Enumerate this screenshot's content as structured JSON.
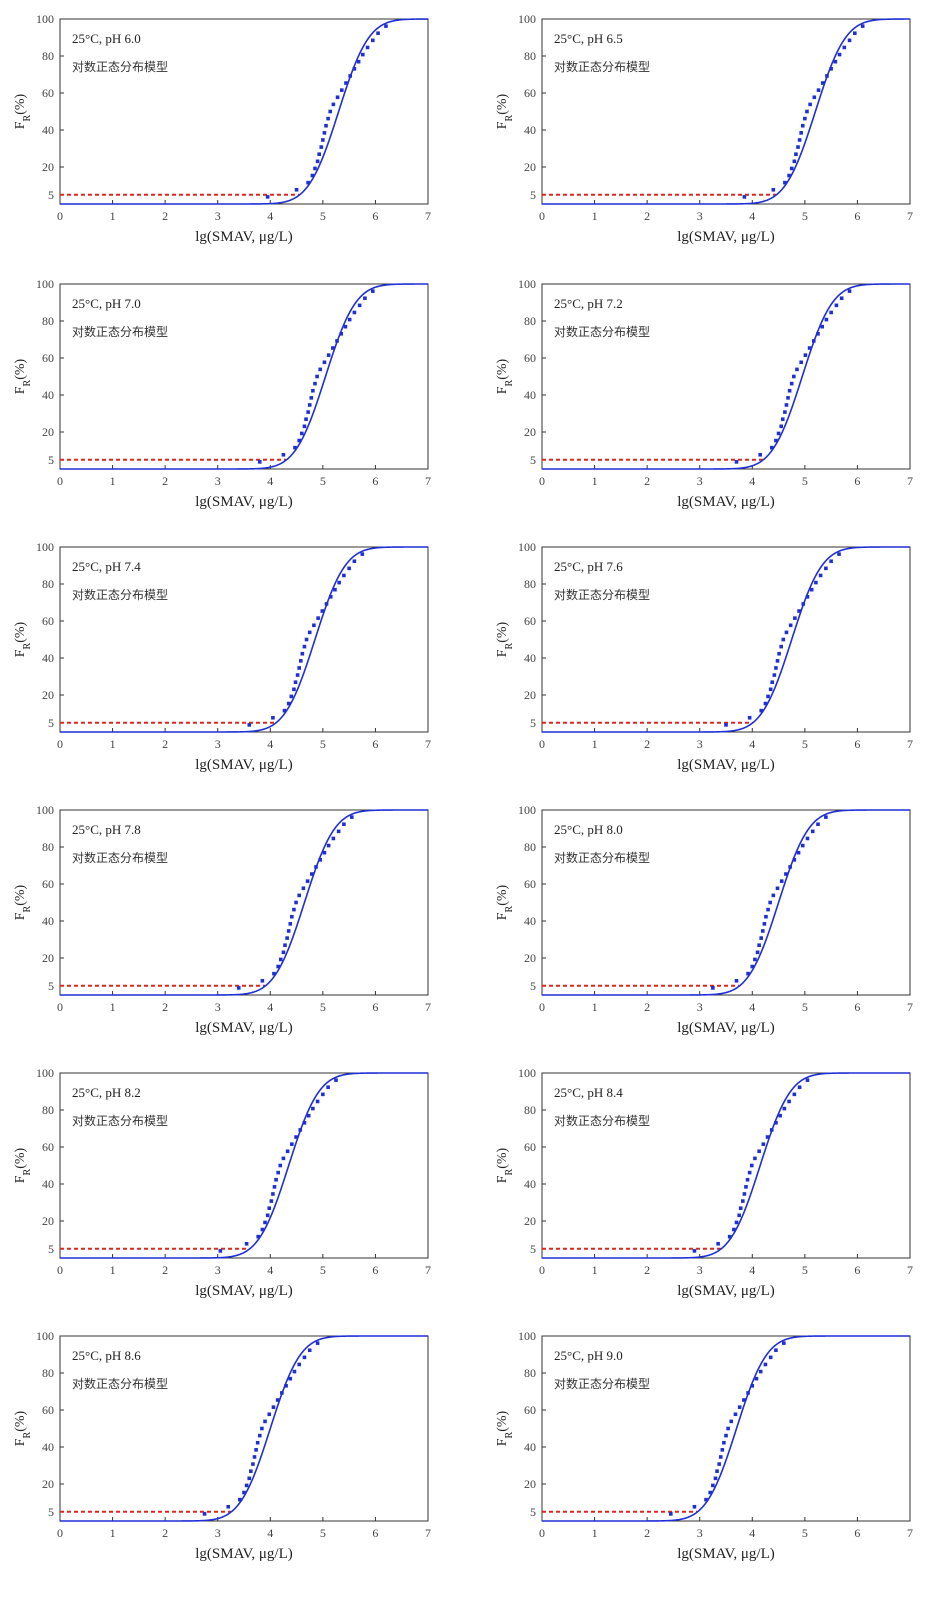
{
  "chart_data": [
    {
      "type": "line",
      "panel": "pH 6.0",
      "annotation": "25°C, pH 6.0",
      "model_label": "对数正态分布模型",
      "xlabel": "lg(SMAV,  μg/L)",
      "ylabel": "F_R(%)",
      "xlim": [
        0,
        7
      ],
      "ylim": [
        0,
        100
      ],
      "xticks": [
        0,
        1,
        2,
        3,
        4,
        5,
        6,
        7
      ],
      "yticks": [
        5,
        20,
        40,
        60,
        80,
        100
      ],
      "threshold_percent": 5,
      "hc5_lg": 4.55,
      "fit": {
        "mu": 5.3,
        "sigma": 0.45
      },
      "points_x": [
        3.95,
        4.5,
        4.72,
        4.8,
        4.85,
        4.9,
        4.93,
        4.97,
        5.0,
        5.03,
        5.06,
        5.1,
        5.14,
        5.2,
        5.28,
        5.36,
        5.44,
        5.52,
        5.6,
        5.68,
        5.76,
        5.85,
        5.95,
        6.05,
        6.2
      ]
    },
    {
      "type": "line",
      "panel": "pH 6.5",
      "annotation": "25°C, pH 6.5",
      "model_label": "对数正态分布模型",
      "xlabel": "lg(SMAV,  μg/L)",
      "ylabel": "F_R(%)",
      "xlim": [
        0,
        7
      ],
      "ylim": [
        0,
        100
      ],
      "xticks": [
        0,
        1,
        2,
        3,
        4,
        5,
        6,
        7
      ],
      "yticks": [
        5,
        20,
        40,
        60,
        80,
        100
      ],
      "threshold_percent": 5,
      "hc5_lg": 4.45,
      "fit": {
        "mu": 5.2,
        "sigma": 0.45
      },
      "points_x": [
        3.85,
        4.4,
        4.62,
        4.7,
        4.75,
        4.8,
        4.83,
        4.87,
        4.9,
        4.93,
        4.96,
        5.0,
        5.04,
        5.1,
        5.18,
        5.26,
        5.34,
        5.42,
        5.5,
        5.58,
        5.66,
        5.75,
        5.85,
        5.95,
        6.1
      ]
    },
    {
      "type": "line",
      "panel": "pH 7.0",
      "annotation": "25°C, pH 7.0",
      "model_label": "对数正态分布模型",
      "xlabel": "lg(SMAV,  μg/L)",
      "ylabel": "F_R(%)",
      "xlim": [
        0,
        7
      ],
      "ylim": [
        0,
        100
      ],
      "xticks": [
        0,
        1,
        2,
        3,
        4,
        5,
        6,
        7
      ],
      "yticks": [
        5,
        20,
        40,
        60,
        80,
        100
      ],
      "threshold_percent": 5,
      "hc5_lg": 4.3,
      "fit": {
        "mu": 5.05,
        "sigma": 0.45
      },
      "points_x": [
        3.8,
        4.25,
        4.47,
        4.55,
        4.6,
        4.65,
        4.68,
        4.72,
        4.75,
        4.78,
        4.81,
        4.85,
        4.89,
        4.95,
        5.03,
        5.11,
        5.19,
        5.27,
        5.35,
        5.43,
        5.51,
        5.6,
        5.7,
        5.8,
        5.95
      ]
    },
    {
      "type": "line",
      "panel": "pH 7.2",
      "annotation": "25°C, pH 7.2",
      "model_label": "对数正态分布模型",
      "xlabel": "lg(SMAV,  μg/L)",
      "ylabel": "F_R(%)",
      "xlim": [
        0,
        7
      ],
      "ylim": [
        0,
        100
      ],
      "xticks": [
        0,
        1,
        2,
        3,
        4,
        5,
        6,
        7
      ],
      "yticks": [
        5,
        20,
        40,
        60,
        80,
        100
      ],
      "threshold_percent": 5,
      "hc5_lg": 4.2,
      "fit": {
        "mu": 4.95,
        "sigma": 0.45
      },
      "points_x": [
        3.7,
        4.15,
        4.37,
        4.45,
        4.5,
        4.55,
        4.58,
        4.62,
        4.65,
        4.68,
        4.71,
        4.75,
        4.79,
        4.85,
        4.93,
        5.01,
        5.09,
        5.17,
        5.25,
        5.33,
        5.41,
        5.5,
        5.6,
        5.7,
        5.85
      ]
    },
    {
      "type": "line",
      "panel": "pH 7.4",
      "annotation": "25°C, pH 7.4",
      "model_label": "对数正态分布模型",
      "xlabel": "lg(SMAV,  μg/L)",
      "ylabel": "F_R(%)",
      "xlim": [
        0,
        7
      ],
      "ylim": [
        0,
        100
      ],
      "xticks": [
        0,
        1,
        2,
        3,
        4,
        5,
        6,
        7
      ],
      "yticks": [
        5,
        20,
        40,
        60,
        80,
        100
      ],
      "threshold_percent": 5,
      "hc5_lg": 4.1,
      "fit": {
        "mu": 4.85,
        "sigma": 0.45
      },
      "points_x": [
        3.6,
        4.05,
        4.27,
        4.35,
        4.4,
        4.45,
        4.48,
        4.52,
        4.55,
        4.58,
        4.61,
        4.65,
        4.69,
        4.75,
        4.83,
        4.91,
        4.99,
        5.07,
        5.15,
        5.23,
        5.31,
        5.4,
        5.5,
        5.6,
        5.75
      ]
    },
    {
      "type": "line",
      "panel": "pH 7.6",
      "annotation": "25°C, pH 7.6",
      "model_label": "对数正态分布模型",
      "xlabel": "lg(SMAV,  μg/L)",
      "ylabel": "F_R(%)",
      "xlim": [
        0,
        7
      ],
      "ylim": [
        0,
        100
      ],
      "xticks": [
        0,
        1,
        2,
        3,
        4,
        5,
        6,
        7
      ],
      "yticks": [
        5,
        20,
        40,
        60,
        80,
        100
      ],
      "threshold_percent": 5,
      "hc5_lg": 4.0,
      "fit": {
        "mu": 4.75,
        "sigma": 0.45
      },
      "points_x": [
        3.5,
        3.95,
        4.17,
        4.25,
        4.3,
        4.35,
        4.38,
        4.42,
        4.45,
        4.48,
        4.51,
        4.55,
        4.59,
        4.65,
        4.73,
        4.81,
        4.89,
        4.97,
        5.05,
        5.13,
        5.21,
        5.3,
        5.4,
        5.5,
        5.65
      ]
    },
    {
      "type": "line",
      "panel": "pH 7.8",
      "annotation": "25°C, pH 7.8",
      "model_label": "对数正态分布模型",
      "xlabel": "lg(SMAV,  μg/L)",
      "ylabel": "F_R(%)",
      "xlim": [
        0,
        7
      ],
      "ylim": [
        0,
        100
      ],
      "xticks": [
        0,
        1,
        2,
        3,
        4,
        5,
        6,
        7
      ],
      "yticks": [
        5,
        20,
        40,
        60,
        80,
        100
      ],
      "threshold_percent": 5,
      "hc5_lg": 3.9,
      "fit": {
        "mu": 4.65,
        "sigma": 0.45
      },
      "points_x": [
        3.4,
        3.85,
        4.07,
        4.15,
        4.2,
        4.25,
        4.28,
        4.32,
        4.35,
        4.38,
        4.41,
        4.45,
        4.49,
        4.55,
        4.63,
        4.71,
        4.79,
        4.87,
        4.95,
        5.03,
        5.11,
        5.2,
        5.3,
        5.4,
        5.55
      ]
    },
    {
      "type": "line",
      "panel": "pH 8.0",
      "annotation": "25°C, pH 8.0",
      "model_label": "对数正态分布模型",
      "xlabel": "lg(SMAV,  μg/L)",
      "ylabel": "F_R(%)",
      "xlim": [
        0,
        7
      ],
      "ylim": [
        0,
        100
      ],
      "xticks": [
        0,
        1,
        2,
        3,
        4,
        5,
        6,
        7
      ],
      "yticks": [
        5,
        20,
        40,
        60,
        80,
        100
      ],
      "threshold_percent": 5,
      "hc5_lg": 3.75,
      "fit": {
        "mu": 4.5,
        "sigma": 0.45
      },
      "points_x": [
        3.25,
        3.7,
        3.92,
        4.0,
        4.05,
        4.1,
        4.13,
        4.17,
        4.2,
        4.23,
        4.26,
        4.3,
        4.34,
        4.4,
        4.48,
        4.56,
        4.64,
        4.72,
        4.8,
        4.88,
        4.96,
        5.05,
        5.15,
        5.25,
        5.4
      ]
    },
    {
      "type": "line",
      "panel": "pH 8.2",
      "annotation": "25°C, pH 8.2",
      "model_label": "对数正态分布模型",
      "xlabel": "lg(SMAV,  μg/L)",
      "ylabel": "F_R(%)",
      "xlim": [
        0,
        7
      ],
      "ylim": [
        0,
        100
      ],
      "xticks": [
        0,
        1,
        2,
        3,
        4,
        5,
        6,
        7
      ],
      "yticks": [
        5,
        20,
        40,
        60,
        80,
        100
      ],
      "threshold_percent": 5,
      "hc5_lg": 3.6,
      "fit": {
        "mu": 4.35,
        "sigma": 0.45
      },
      "points_x": [
        3.05,
        3.55,
        3.77,
        3.85,
        3.9,
        3.95,
        3.98,
        4.02,
        4.05,
        4.08,
        4.11,
        4.15,
        4.19,
        4.25,
        4.33,
        4.41,
        4.49,
        4.57,
        4.65,
        4.73,
        4.81,
        4.9,
        5.0,
        5.1,
        5.25
      ]
    },
    {
      "type": "line",
      "panel": "pH 8.4",
      "annotation": "25°C, pH 8.4",
      "model_label": "对数正态分布模型",
      "xlabel": "lg(SMAV,  μg/L)",
      "ylabel": "F_R(%)",
      "xlim": [
        0,
        7
      ],
      "ylim": [
        0,
        100
      ],
      "xticks": [
        0,
        1,
        2,
        3,
        4,
        5,
        6,
        7
      ],
      "yticks": [
        5,
        20,
        40,
        60,
        80,
        100
      ],
      "threshold_percent": 5,
      "hc5_lg": 3.4,
      "fit": {
        "mu": 4.15,
        "sigma": 0.45
      },
      "points_x": [
        2.9,
        3.35,
        3.57,
        3.65,
        3.7,
        3.75,
        3.78,
        3.82,
        3.85,
        3.88,
        3.91,
        3.95,
        3.99,
        4.05,
        4.13,
        4.21,
        4.29,
        4.37,
        4.45,
        4.53,
        4.61,
        4.7,
        4.8,
        4.9,
        5.05
      ]
    },
    {
      "type": "line",
      "panel": "pH 8.6",
      "annotation": "25°C, pH 8.6",
      "model_label": "对数正态分布模型",
      "xlabel": "lg(SMAV,  μg/L)",
      "ylabel": "F_R(%)",
      "xlim": [
        0,
        7
      ],
      "ylim": [
        0,
        100
      ],
      "xticks": [
        0,
        1,
        2,
        3,
        4,
        5,
        6,
        7
      ],
      "yticks": [
        5,
        20,
        40,
        60,
        80,
        100
      ],
      "threshold_percent": 5,
      "hc5_lg": 3.25,
      "fit": {
        "mu": 4.0,
        "sigma": 0.45
      },
      "points_x": [
        2.75,
        3.2,
        3.42,
        3.5,
        3.55,
        3.6,
        3.63,
        3.67,
        3.7,
        3.73,
        3.76,
        3.8,
        3.84,
        3.9,
        3.98,
        4.06,
        4.14,
        4.22,
        4.3,
        4.38,
        4.46,
        4.55,
        4.65,
        4.75,
        4.9
      ]
    },
    {
      "type": "line",
      "panel": "pH 9.0",
      "annotation": "25°C, pH 9.0",
      "model_label": "对数正态分布模型",
      "xlabel": "lg(SMAV,  μg/L)",
      "ylabel": "F_R(%)",
      "xlim": [
        0,
        7
      ],
      "ylim": [
        0,
        100
      ],
      "xticks": [
        0,
        1,
        2,
        3,
        4,
        5,
        6,
        7
      ],
      "yticks": [
        5,
        20,
        40,
        60,
        80,
        100
      ],
      "threshold_percent": 5,
      "hc5_lg": 2.95,
      "fit": {
        "mu": 3.7,
        "sigma": 0.45
      },
      "points_x": [
        2.45,
        2.9,
        3.12,
        3.2,
        3.25,
        3.3,
        3.33,
        3.37,
        3.4,
        3.43,
        3.46,
        3.5,
        3.54,
        3.6,
        3.68,
        3.76,
        3.84,
        3.92,
        4.0,
        4.08,
        4.16,
        4.25,
        4.35,
        4.45,
        4.6
      ]
    }
  ],
  "colors": {
    "fit_line": "#1f2fd6",
    "points": "#1f2fd6",
    "threshold_line": "#d9281e",
    "axis": "#333333",
    "text": "#222222"
  }
}
